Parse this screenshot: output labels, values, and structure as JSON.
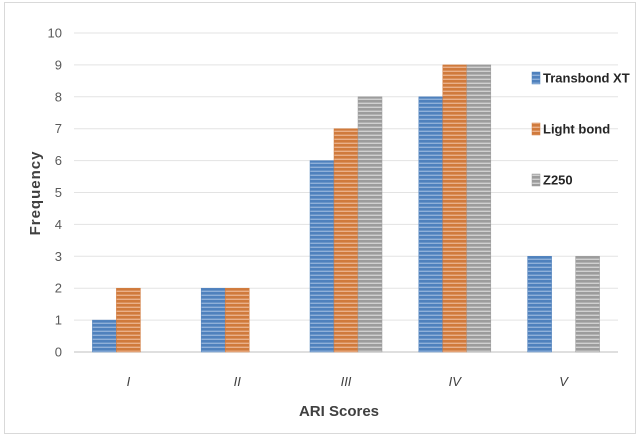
{
  "chart_data": {
    "type": "bar",
    "title": "",
    "xlabel": "ARI Scores",
    "ylabel": "Frequency",
    "categories": [
      "I",
      "II",
      "III",
      "IV",
      "V"
    ],
    "yticks": [
      "0",
      "1",
      "2",
      "3",
      "4",
      "5",
      "6",
      "7",
      "8",
      "9",
      "10"
    ],
    "ylim": [
      0,
      10
    ],
    "grid": true,
    "legend_position": "right",
    "series": [
      {
        "name": "Transbond XT",
        "values": [
          1,
          2,
          6,
          8,
          3
        ],
        "color": "#4f81bd"
      },
      {
        "name": "Light bond",
        "values": [
          2,
          2,
          7,
          9,
          0
        ],
        "color": "#d07a3c"
      },
      {
        "name": "Z250",
        "values": [
          0,
          0,
          8,
          9,
          3
        ],
        "color": "#9c9c9c"
      }
    ]
  }
}
